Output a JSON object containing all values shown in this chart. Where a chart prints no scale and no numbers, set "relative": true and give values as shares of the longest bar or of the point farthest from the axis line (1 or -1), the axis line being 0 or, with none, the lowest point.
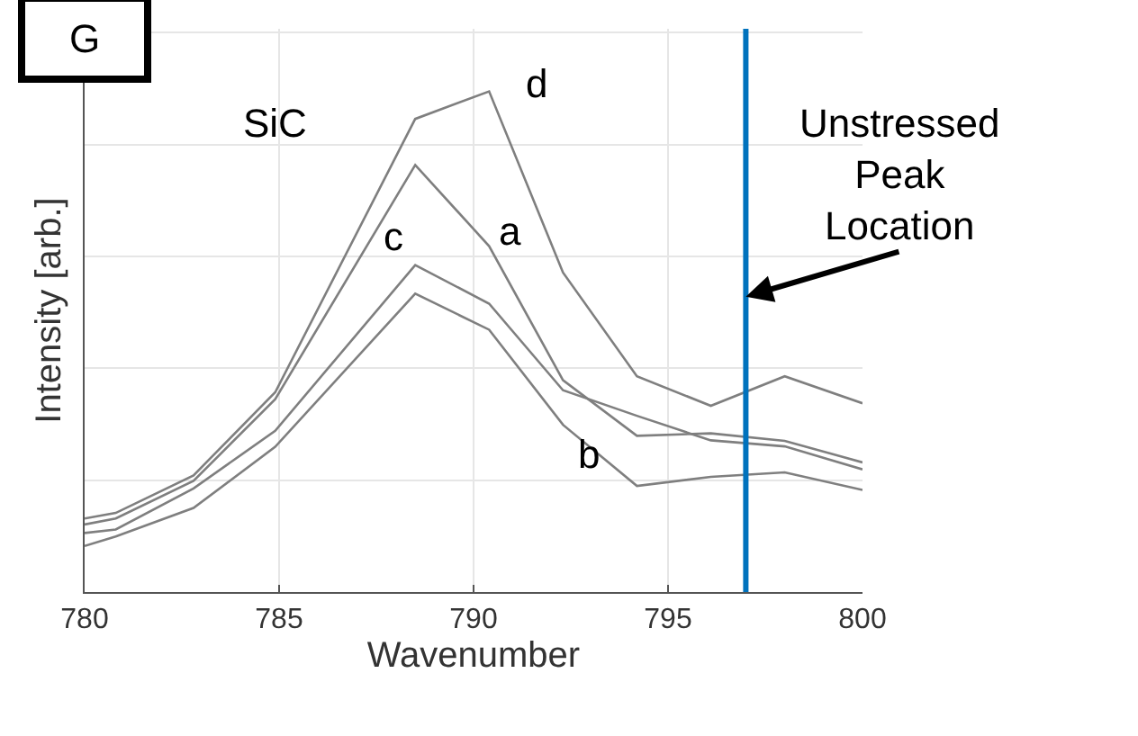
{
  "chart_data": {
    "type": "line",
    "xlabel": "Wavenumber",
    "ylabel": "Intensity [arb.]",
    "relative": true,
    "x": [
      780,
      780.8,
      782.8,
      784.9,
      788.5,
      790.4,
      792.3,
      794.2,
      796.1,
      798,
      800
    ],
    "series": [
      {
        "name": "a",
        "color": "#7f7f7f",
        "values": [
          0.135,
          0.147,
          0.222,
          0.385,
          0.853,
          0.691,
          0.423,
          0.312,
          0.317,
          0.302,
          0.259
        ]
      },
      {
        "name": "b",
        "color": "#7f7f7f",
        "values": [
          0.092,
          0.111,
          0.168,
          0.29,
          0.596,
          0.524,
          0.334,
          0.212,
          0.23,
          0.239,
          0.204
        ]
      },
      {
        "name": "c",
        "color": "#7f7f7f",
        "values": [
          0.118,
          0.125,
          0.207,
          0.322,
          0.653,
          0.576,
          0.403,
          0.352,
          0.303,
          0.291,
          0.245
        ]
      },
      {
        "name": "d",
        "color": "#7f7f7f",
        "values": [
          0.147,
          0.158,
          0.233,
          0.399,
          0.945,
          1,
          0.638,
          0.431,
          0.372,
          0.431,
          0.377
        ]
      }
    ],
    "xlim": [
      780,
      800
    ],
    "xticks": [
      780,
      785,
      790,
      795,
      800
    ],
    "grid": true,
    "legend": false,
    "marker": "none",
    "line_style": "solid",
    "ref_lines": [
      {
        "axis": "x",
        "value": 797,
        "color": "#0072bd"
      }
    ],
    "annotations": [
      "G",
      "SiC",
      {
        "text": "Unstressed Peak Location",
        "x": 797,
        "y": 0.59
      }
    ]
  }
}
